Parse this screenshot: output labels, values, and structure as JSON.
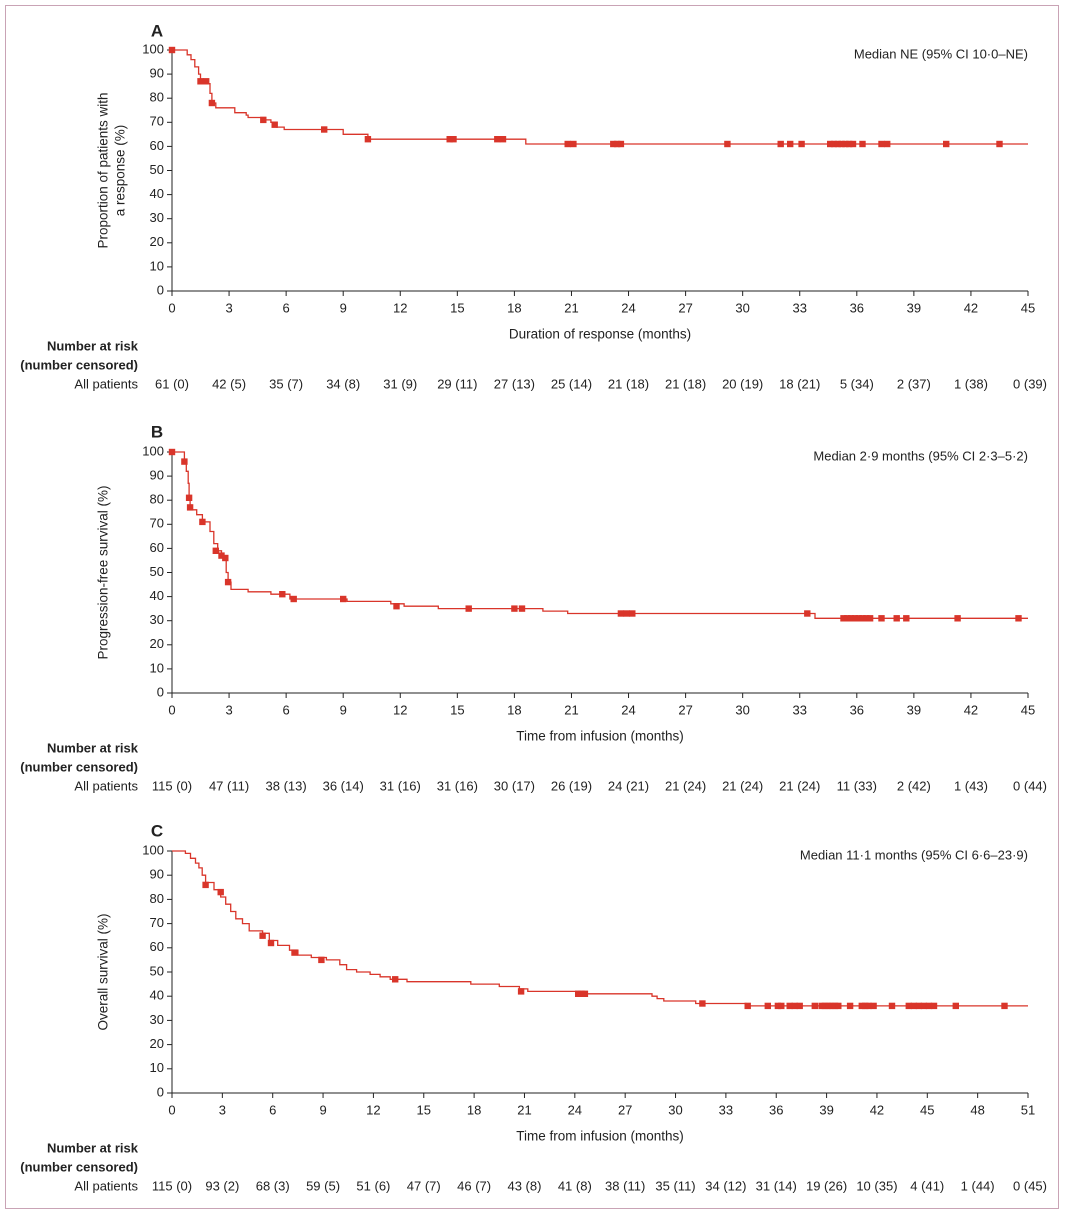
{
  "colors": {
    "curve": "#d9352a",
    "axis": "#222222",
    "frame": "#c9a3b5"
  },
  "risk_table_heading": {
    "line1": "Number at risk",
    "line2": "(number censored)",
    "row_label": "All patients"
  },
  "chart_data": [
    {
      "type": "line",
      "panel": "A",
      "ylabel": [
        "Proportion of patients with",
        "a response (%)"
      ],
      "xlabel": "Duration of response (months)",
      "annotation": "Median NE (95% CI 10·0–NE)",
      "xlim": [
        0,
        45
      ],
      "ylim": [
        0,
        100
      ],
      "xticks": [
        "0",
        "3",
        "6",
        "9",
        "12",
        "15",
        "18",
        "21",
        "24",
        "27",
        "30",
        "33",
        "36",
        "39",
        "42",
        "45"
      ],
      "yticks": [
        "0",
        "10",
        "20",
        "30",
        "40",
        "50",
        "60",
        "70",
        "80",
        "90",
        "100"
      ],
      "step_curve": [
        [
          0,
          100
        ],
        [
          0.6,
          100
        ],
        [
          0.8,
          98
        ],
        [
          1.0,
          96
        ],
        [
          1.2,
          93
        ],
        [
          1.4,
          90
        ],
        [
          1.5,
          86
        ],
        [
          1.9,
          86
        ],
        [
          2.0,
          82
        ],
        [
          2.1,
          78
        ],
        [
          2.3,
          76
        ],
        [
          3.2,
          76
        ],
        [
          3.3,
          74
        ],
        [
          3.9,
          73
        ],
        [
          4.0,
          72
        ],
        [
          4.9,
          71
        ],
        [
          5.2,
          70
        ],
        [
          5.5,
          68
        ],
        [
          5.9,
          67
        ],
        [
          8.0,
          67
        ],
        [
          9.0,
          65
        ],
        [
          10.0,
          65
        ],
        [
          10.3,
          63
        ],
        [
          18.5,
          63
        ],
        [
          18.6,
          61
        ],
        [
          45,
          61
        ]
      ],
      "censored": [
        [
          0,
          100
        ],
        [
          1.5,
          87
        ],
        [
          1.8,
          87
        ],
        [
          2.1,
          78
        ],
        [
          4.8,
          71
        ],
        [
          5.4,
          69
        ],
        [
          8.0,
          67
        ],
        [
          10.3,
          63
        ],
        [
          14.6,
          63
        ],
        [
          14.8,
          63
        ],
        [
          17.1,
          63
        ],
        [
          17.4,
          63
        ],
        [
          20.8,
          61
        ],
        [
          21.1,
          61
        ],
        [
          23.2,
          61
        ],
        [
          23.4,
          61
        ],
        [
          23.6,
          61
        ],
        [
          29.2,
          61
        ],
        [
          32.0,
          61
        ],
        [
          32.5,
          61
        ],
        [
          33.1,
          61
        ],
        [
          34.6,
          61
        ],
        [
          34.8,
          61
        ],
        [
          35.0,
          61
        ],
        [
          35.2,
          61
        ],
        [
          35.4,
          61
        ],
        [
          35.6,
          61
        ],
        [
          35.8,
          61
        ],
        [
          36.3,
          61
        ],
        [
          37.3,
          61
        ],
        [
          37.6,
          61
        ],
        [
          40.7,
          61
        ],
        [
          43.5,
          61
        ]
      ],
      "risk_times": [
        0,
        3,
        6,
        9,
        12,
        15,
        18,
        21,
        24,
        27,
        30,
        33,
        36,
        39,
        42,
        45
      ],
      "risk_values": [
        "61 (0)",
        "42 (5)",
        "35 (7)",
        "34 (8)",
        "31 (9)",
        "29 (11)",
        "27 (13)",
        "25 (14)",
        "21 (18)",
        "21 (18)",
        "20 (19)",
        "18 (21)",
        "5 (34)",
        "2 (37)",
        "1 (38)",
        "0 (39)"
      ]
    },
    {
      "type": "line",
      "panel": "B",
      "ylabel": [
        "Progression-free survival (%)"
      ],
      "xlabel": "Time from infusion (months)",
      "annotation": "Median 2·9 months (95% CI 2·3–5·2)",
      "xlim": [
        0,
        45
      ],
      "ylim": [
        0,
        100
      ],
      "xticks": [
        "0",
        "3",
        "6",
        "9",
        "12",
        "15",
        "18",
        "21",
        "24",
        "27",
        "30",
        "33",
        "36",
        "39",
        "42",
        "45"
      ],
      "yticks": [
        "0",
        "10",
        "20",
        "30",
        "40",
        "50",
        "60",
        "70",
        "80",
        "90",
        "100"
      ],
      "step_curve": [
        [
          0,
          100
        ],
        [
          0.6,
          100
        ],
        [
          0.65,
          96
        ],
        [
          0.75,
          92
        ],
        [
          0.85,
          87
        ],
        [
          0.9,
          81
        ],
        [
          0.95,
          78
        ],
        [
          1.0,
          76
        ],
        [
          1.3,
          74
        ],
        [
          1.6,
          71
        ],
        [
          2.0,
          67
        ],
        [
          2.2,
          62
        ],
        [
          2.4,
          59
        ],
        [
          2.6,
          57
        ],
        [
          2.75,
          56
        ],
        [
          2.85,
          50
        ],
        [
          2.95,
          46
        ],
        [
          3.1,
          43
        ],
        [
          4.0,
          42
        ],
        [
          5.2,
          41
        ],
        [
          6.2,
          39
        ],
        [
          9.1,
          39
        ],
        [
          9.2,
          38
        ],
        [
          11.0,
          38
        ],
        [
          11.5,
          37
        ],
        [
          12.2,
          36
        ],
        [
          14.0,
          35
        ],
        [
          19.4,
          35
        ],
        [
          19.5,
          34
        ],
        [
          20.7,
          34
        ],
        [
          20.8,
          33
        ],
        [
          33.7,
          33
        ],
        [
          33.8,
          31
        ],
        [
          45,
          31
        ]
      ],
      "censored": [
        [
          0,
          100
        ],
        [
          0.65,
          96
        ],
        [
          0.9,
          81
        ],
        [
          0.95,
          77
        ],
        [
          1.6,
          71
        ],
        [
          2.3,
          59
        ],
        [
          2.6,
          57
        ],
        [
          2.8,
          56
        ],
        [
          2.95,
          46
        ],
        [
          5.8,
          41
        ],
        [
          6.4,
          39
        ],
        [
          9.0,
          39
        ],
        [
          11.8,
          36
        ],
        [
          15.6,
          35
        ],
        [
          18.0,
          35
        ],
        [
          18.4,
          35
        ],
        [
          23.6,
          33
        ],
        [
          23.9,
          33
        ],
        [
          24.2,
          33
        ],
        [
          33.4,
          33
        ],
        [
          35.3,
          31
        ],
        [
          35.5,
          31
        ],
        [
          35.7,
          31
        ],
        [
          35.9,
          31
        ],
        [
          36.1,
          31
        ],
        [
          36.3,
          31
        ],
        [
          36.5,
          31
        ],
        [
          36.7,
          31
        ],
        [
          37.3,
          31
        ],
        [
          38.1,
          31
        ],
        [
          38.6,
          31
        ],
        [
          41.3,
          31
        ],
        [
          44.5,
          31
        ]
      ],
      "risk_times": [
        0,
        3,
        6,
        9,
        12,
        15,
        18,
        21,
        24,
        27,
        30,
        33,
        36,
        39,
        42,
        45
      ],
      "risk_values": [
        "115 (0)",
        "47 (11)",
        "38 (13)",
        "36 (14)",
        "31 (16)",
        "31 (16)",
        "30 (17)",
        "26 (19)",
        "24 (21)",
        "21 (24)",
        "21 (24)",
        "21 (24)",
        "11 (33)",
        "2 (42)",
        "1 (43)",
        "0 (44)"
      ]
    },
    {
      "type": "line",
      "panel": "C",
      "ylabel": [
        "Overall survival (%)"
      ],
      "xlabel": "Time from infusion (months)",
      "annotation": "Median 11·1 months (95% CI 6·6–23·9)",
      "xlim": [
        0,
        51
      ],
      "ylim": [
        0,
        100
      ],
      "xticks": [
        "0",
        "3",
        "6",
        "9",
        "12",
        "15",
        "18",
        "21",
        "24",
        "27",
        "30",
        "33",
        "36",
        "39",
        "42",
        "45",
        "48",
        "51"
      ],
      "yticks": [
        "0",
        "10",
        "20",
        "30",
        "40",
        "50",
        "60",
        "70",
        "80",
        "90",
        "100"
      ],
      "step_curve": [
        [
          0,
          100
        ],
        [
          0.4,
          100
        ],
        [
          0.8,
          99
        ],
        [
          1.1,
          97
        ],
        [
          1.4,
          95
        ],
        [
          1.6,
          93
        ],
        [
          1.8,
          90
        ],
        [
          2.0,
          87
        ],
        [
          2.5,
          84
        ],
        [
          2.9,
          81
        ],
        [
          3.2,
          78
        ],
        [
          3.5,
          75
        ],
        [
          3.8,
          72
        ],
        [
          4.2,
          70
        ],
        [
          4.6,
          67
        ],
        [
          5.4,
          66
        ],
        [
          5.8,
          63
        ],
        [
          6.3,
          61
        ],
        [
          7.0,
          59
        ],
        [
          7.5,
          57
        ],
        [
          8.3,
          56
        ],
        [
          9.2,
          55
        ],
        [
          10.0,
          53
        ],
        [
          10.4,
          51
        ],
        [
          11.0,
          50
        ],
        [
          11.8,
          49
        ],
        [
          12.4,
          48
        ],
        [
          13.0,
          47
        ],
        [
          14.0,
          46
        ],
        [
          17.8,
          45
        ],
        [
          19.5,
          44
        ],
        [
          20.7,
          43
        ],
        [
          21.2,
          42
        ],
        [
          24.3,
          41
        ],
        [
          28.6,
          40
        ],
        [
          28.9,
          39
        ],
        [
          29.3,
          38
        ],
        [
          31.2,
          37
        ],
        [
          34.2,
          36
        ],
        [
          51,
          36
        ]
      ],
      "censored": [
        [
          2.0,
          86
        ],
        [
          2.9,
          83
        ],
        [
          5.4,
          65
        ],
        [
          5.9,
          62
        ],
        [
          7.3,
          58
        ],
        [
          8.9,
          55
        ],
        [
          13.3,
          47
        ],
        [
          20.8,
          42
        ],
        [
          24.2,
          41
        ],
        [
          24.4,
          41
        ],
        [
          24.6,
          41
        ],
        [
          31.6,
          37
        ],
        [
          34.3,
          36
        ],
        [
          35.5,
          36
        ],
        [
          36.1,
          36
        ],
        [
          36.3,
          36
        ],
        [
          36.8,
          36
        ],
        [
          37.1,
          36
        ],
        [
          37.4,
          36
        ],
        [
          38.3,
          36
        ],
        [
          38.7,
          36
        ],
        [
          38.9,
          36
        ],
        [
          39.1,
          36
        ],
        [
          39.3,
          36
        ],
        [
          39.5,
          36
        ],
        [
          39.7,
          36
        ],
        [
          40.4,
          36
        ],
        [
          41.1,
          36
        ],
        [
          41.3,
          36
        ],
        [
          41.5,
          36
        ],
        [
          41.8,
          36
        ],
        [
          42.9,
          36
        ],
        [
          43.9,
          36
        ],
        [
          44.2,
          36
        ],
        [
          44.5,
          36
        ],
        [
          44.8,
          36
        ],
        [
          45.1,
          36
        ],
        [
          45.4,
          36
        ],
        [
          46.7,
          36
        ],
        [
          49.6,
          36
        ]
      ],
      "risk_times": [
        0,
        3,
        6,
        9,
        12,
        15,
        18,
        21,
        24,
        27,
        30,
        33,
        36,
        39,
        42,
        45,
        48,
        51
      ],
      "risk_values": [
        "115 (0)",
        "93 (2)",
        "68 (3)",
        "59 (5)",
        "51 (6)",
        "47 (7)",
        "46 (7)",
        "43 (8)",
        "41 (8)",
        "38 (11)",
        "35 (11)",
        "34 (12)",
        "31 (14)",
        "19 (26)",
        "10 (35)",
        "4 (41)",
        "1 (44)",
        "0 (45)"
      ]
    }
  ]
}
